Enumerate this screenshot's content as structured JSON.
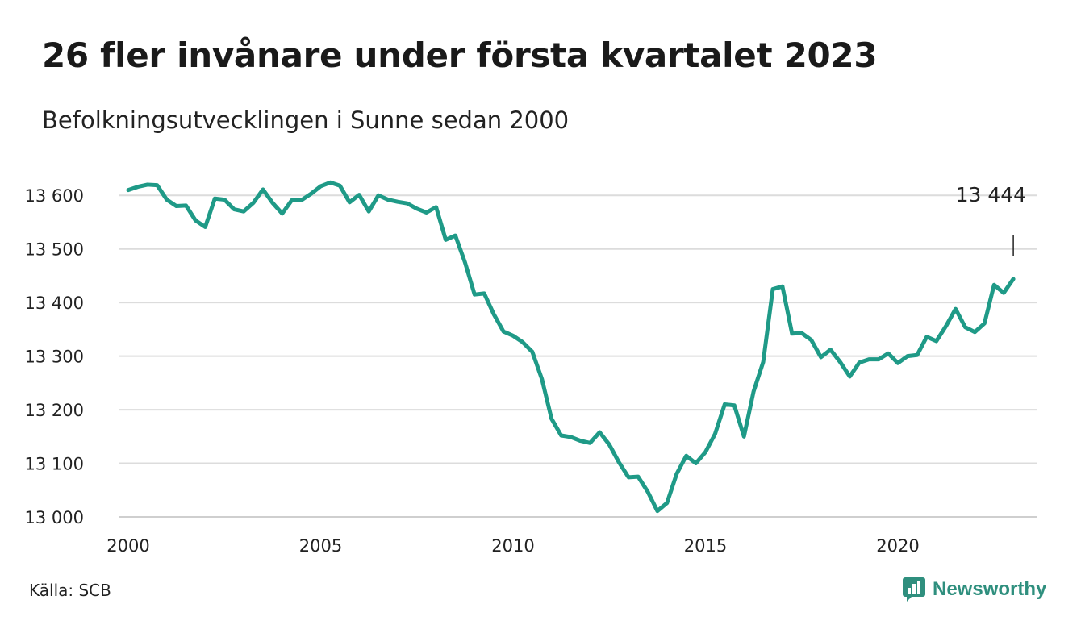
{
  "header": {
    "title": "26 fler invånare under första kvartalet 2023",
    "subtitle": "Befolkningsutvecklingen i Sunne sedan 2000"
  },
  "footer": {
    "source": "Källa: SCB",
    "brand": "Newsworthy",
    "brand_icon": "newsworthy-logo-icon"
  },
  "colors": {
    "line": "#1f9a87",
    "grid": "#dcdcdc",
    "brand": "#2f8f7e"
  },
  "chart_data": {
    "type": "line",
    "title": "26 fler invånare under första kvartalet 2023",
    "subtitle": "Befolkningsutvecklingen i Sunne sedan 2000",
    "xlabel": "",
    "ylabel": "",
    "xlim": [
      2000,
      2023.25
    ],
    "ylim": [
      13000,
      13650
    ],
    "grid": "horizontal",
    "x_ticks": [
      2000,
      2005,
      2010,
      2015,
      2020
    ],
    "x_tick_labels": [
      "2000",
      "2005",
      "2010",
      "2015",
      "2020"
    ],
    "y_ticks": [
      13000,
      13100,
      13200,
      13300,
      13400,
      13500,
      13600
    ],
    "y_tick_labels": [
      "13 000",
      "13 100",
      "13 200",
      "13 300",
      "13 400",
      "13 500",
      "13 600"
    ],
    "annotation": {
      "x": 2023.0,
      "label": "13 444"
    },
    "series": [
      {
        "x": [
          2000.0,
          2000.25,
          2000.5,
          2000.75,
          2001.0,
          2001.25,
          2001.5,
          2001.75,
          2002.0,
          2002.25,
          2002.5,
          2002.75,
          2003.0,
          2003.25,
          2003.5,
          2003.75,
          2004.0,
          2004.25,
          2004.5,
          2004.75,
          2005.0,
          2005.25,
          2005.5,
          2005.75,
          2006.0,
          2006.25,
          2006.5,
          2006.75,
          2007.0,
          2007.25,
          2007.5,
          2007.75,
          2008.0,
          2008.25,
          2008.5,
          2008.75,
          2009.0,
          2009.25,
          2009.5,
          2009.75,
          2010.0,
          2010.25,
          2010.5,
          2010.75,
          2011.0,
          2011.25,
          2011.5,
          2011.75,
          2012.0,
          2012.25,
          2012.5,
          2012.75,
          2013.0,
          2013.25,
          2013.5,
          2013.75,
          2014.0,
          2014.25,
          2014.5,
          2014.75,
          2015.0,
          2015.25,
          2015.5,
          2015.75,
          2016.0,
          2016.25,
          2016.5,
          2016.75,
          2017.0,
          2017.25,
          2017.5,
          2017.75,
          2018.0,
          2018.25,
          2018.5,
          2018.75,
          2019.0,
          2019.25,
          2019.5,
          2019.75,
          2020.0,
          2020.25,
          2020.5,
          2020.75,
          2021.0,
          2021.25,
          2021.5,
          2021.75,
          2022.0,
          2022.25,
          2022.5,
          2022.75,
          2023.0
        ],
        "values": [
          13610,
          13616,
          13620,
          13619,
          13592,
          13580,
          13581,
          13553,
          13541,
          13594,
          13592,
          13574,
          13570,
          13586,
          13611,
          13586,
          13566,
          13591,
          13591,
          13603,
          13617,
          13624,
          13618,
          13587,
          13601,
          13570,
          13600,
          13592,
          13588,
          13585,
          13575,
          13568,
          13578,
          13517,
          13525,
          13475,
          13415,
          13417,
          13378,
          13346,
          13338,
          13326,
          13308,
          13257,
          13183,
          13152,
          13149,
          13142,
          13138,
          13158,
          13135,
          13102,
          13074,
          13075,
          13047,
          13011,
          13026,
          13080,
          13114,
          13100,
          13121,
          13155,
          13210,
          13208,
          13150,
          13234,
          13289,
          13425,
          13430,
          13342,
          13343,
          13330,
          13298,
          13312,
          13289,
          13262,
          13288,
          13294,
          13294,
          13305,
          13287,
          13300,
          13302,
          13336,
          13328,
          13356,
          13388,
          13354,
          13345,
          13361,
          13433,
          13418,
          13444
        ]
      }
    ]
  }
}
